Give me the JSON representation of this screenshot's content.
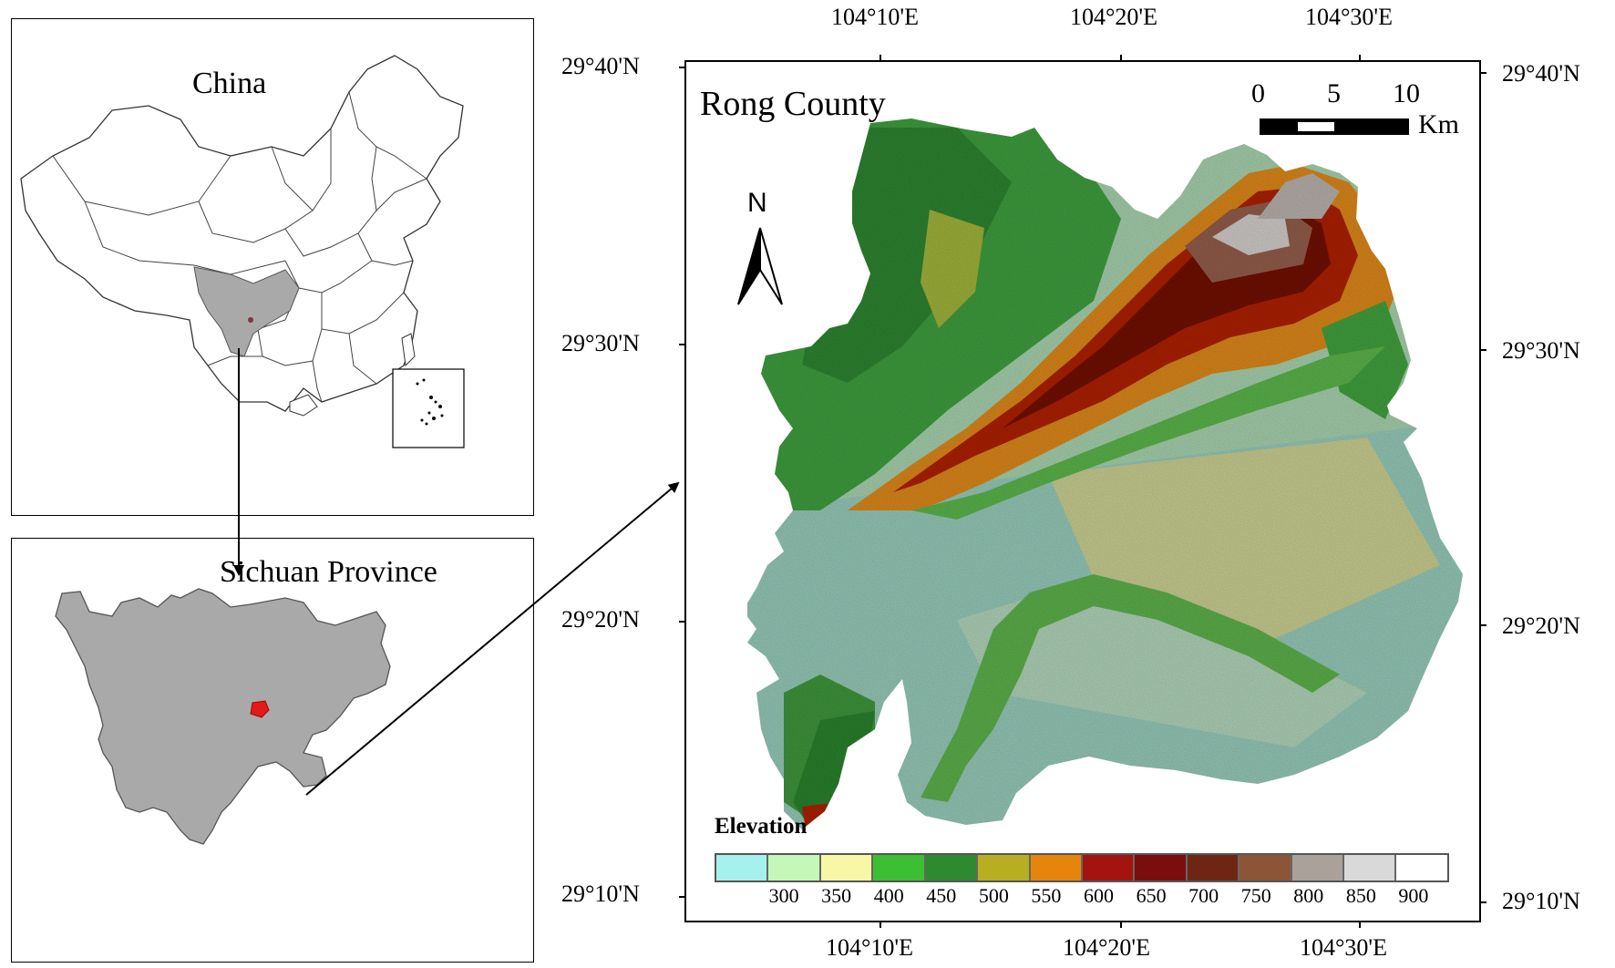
{
  "china_panel": {
    "title": "China"
  },
  "sichuan_panel": {
    "title": "Sichuan Province"
  },
  "county_map": {
    "title": "Rong County",
    "north_label": "N",
    "scale_bar": {
      "labels": [
        "0",
        "5",
        "10"
      ],
      "unit": "Km"
    },
    "top_longitude_labels": [
      "104°10'E",
      "104°20'E",
      "104°30'E"
    ],
    "bottom_longitude_labels": [
      "104°10'E",
      "104°20'E",
      "104°30'E"
    ],
    "left_latitude_labels": [
      "29°40'N",
      "29°30'N",
      "29°20'N",
      "29°10'N"
    ],
    "right_latitude_labels": [
      "29°40'N",
      "29°30'N",
      "29°20'N",
      "29°10'N"
    ]
  },
  "legend": {
    "title": "Elevation",
    "colors": [
      "#a6f0ee",
      "#c4f7b8",
      "#f7f7a6",
      "#3cbf33",
      "#2e8a30",
      "#b8ae22",
      "#e6850c",
      "#a3140e",
      "#7a0e0c",
      "#6e2614",
      "#8c5538",
      "#a9a19a",
      "#d9d9d9",
      "#ffffff"
    ],
    "labels": [
      "300",
      "350",
      "400",
      "450",
      "500",
      "550",
      "600",
      "650",
      "700",
      "750",
      "800",
      "850",
      "900"
    ]
  }
}
